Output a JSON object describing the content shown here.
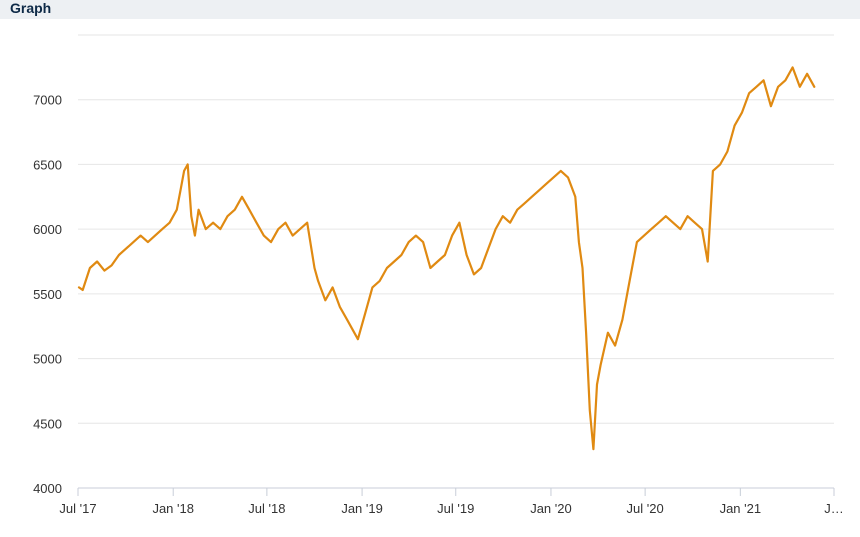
{
  "header": {
    "title": "Graph"
  },
  "colors": {
    "line": "#e08a12",
    "grid": "#e6e6e6",
    "axis": "#c8ced8",
    "tick_text": "#333333"
  },
  "chart_data": {
    "type": "line",
    "title": "",
    "xlabel": "",
    "ylabel": "",
    "ylim": [
      4000,
      7500
    ],
    "yticks": [
      4000,
      4500,
      5000,
      5500,
      6000,
      6500,
      7000
    ],
    "ytick_labels": [
      "4000",
      "4500",
      "5000",
      "5500",
      "6000",
      "6500",
      "7000"
    ],
    "xlim": [
      "2017-07-01",
      "2021-07-01"
    ],
    "xticks": [
      "2017-07-01",
      "2018-01-01",
      "2018-07-01",
      "2019-01-01",
      "2019-07-01",
      "2020-01-01",
      "2020-07-01",
      "2021-01-01",
      "2021-07-01"
    ],
    "xtick_labels": [
      "Jul '17",
      "Jan '18",
      "Jul '18",
      "Jan '19",
      "Jul '19",
      "Jan '20",
      "Jul '20",
      "Jan '21",
      "J…"
    ],
    "grid": true,
    "legend": "none",
    "series": [
      {
        "x": [
          "2017-07-03",
          "2017-07-10",
          "2017-07-24",
          "2017-08-07",
          "2017-08-21",
          "2017-09-04",
          "2017-09-18",
          "2017-10-02",
          "2017-10-16",
          "2017-10-30",
          "2017-11-13",
          "2017-11-27",
          "2017-12-11",
          "2017-12-25",
          "2018-01-08",
          "2018-01-15",
          "2018-01-22",
          "2018-01-29",
          "2018-02-05",
          "2018-02-12",
          "2018-02-19",
          "2018-03-05",
          "2018-03-19",
          "2018-04-02",
          "2018-04-16",
          "2018-04-30",
          "2018-05-14",
          "2018-05-28",
          "2018-06-11",
          "2018-06-25",
          "2018-07-09",
          "2018-07-23",
          "2018-08-06",
          "2018-08-20",
          "2018-09-03",
          "2018-09-17",
          "2018-10-01",
          "2018-10-08",
          "2018-10-22",
          "2018-11-05",
          "2018-11-19",
          "2018-12-03",
          "2018-12-17",
          "2018-12-24",
          "2019-01-07",
          "2019-01-21",
          "2019-02-04",
          "2019-02-18",
          "2019-03-04",
          "2019-03-18",
          "2019-04-01",
          "2019-04-15",
          "2019-04-29",
          "2019-05-13",
          "2019-05-27",
          "2019-06-10",
          "2019-06-24",
          "2019-07-08",
          "2019-07-22",
          "2019-08-05",
          "2019-08-19",
          "2019-09-02",
          "2019-09-16",
          "2019-09-30",
          "2019-10-14",
          "2019-10-28",
          "2019-11-11",
          "2019-11-25",
          "2019-12-09",
          "2019-12-23",
          "2020-01-06",
          "2020-01-20",
          "2020-02-03",
          "2020-02-17",
          "2020-02-24",
          "2020-03-02",
          "2020-03-09",
          "2020-03-16",
          "2020-03-23",
          "2020-03-30",
          "2020-04-06",
          "2020-04-20",
          "2020-05-04",
          "2020-05-18",
          "2020-06-01",
          "2020-06-15",
          "2020-06-29",
          "2020-07-13",
          "2020-07-27",
          "2020-08-10",
          "2020-08-24",
          "2020-09-07",
          "2020-09-21",
          "2020-10-05",
          "2020-10-19",
          "2020-10-30",
          "2020-11-09",
          "2020-11-23",
          "2020-12-07",
          "2020-12-21",
          "2021-01-04",
          "2021-01-18",
          "2021-02-01",
          "2021-02-15",
          "2021-03-01",
          "2021-03-15",
          "2021-03-29",
          "2021-04-12",
          "2021-04-26",
          "2021-05-10",
          "2021-05-24"
        ],
        "values": [
          5550,
          5530,
          5700,
          5750,
          5680,
          5720,
          5800,
          5850,
          5900,
          5950,
          5900,
          5950,
          6000,
          6050,
          6150,
          6300,
          6450,
          6500,
          6100,
          5950,
          6150,
          6000,
          6050,
          6000,
          6100,
          6150,
          6250,
          6150,
          6050,
          5950,
          5900,
          6000,
          6050,
          5950,
          6000,
          6050,
          5700,
          5600,
          5450,
          5550,
          5400,
          5300,
          5200,
          5150,
          5350,
          5550,
          5600,
          5700,
          5750,
          5800,
          5900,
          5950,
          5900,
          5700,
          5750,
          5800,
          5950,
          6050,
          5800,
          5650,
          5700,
          5850,
          6000,
          6100,
          6050,
          6150,
          6200,
          6250,
          6300,
          6350,
          6400,
          6450,
          6400,
          6250,
          5900,
          5700,
          5200,
          4600,
          4300,
          4800,
          4950,
          5200,
          5100,
          5300,
          5600,
          5900,
          5950,
          6000,
          6050,
          6100,
          6050,
          6000,
          6100,
          6050,
          6000,
          5750,
          6450,
          6500,
          6600,
          6800,
          6900,
          7050,
          7100,
          7150,
          6950,
          7100,
          7150,
          7250,
          7100,
          7200,
          7100
        ]
      }
    ]
  }
}
